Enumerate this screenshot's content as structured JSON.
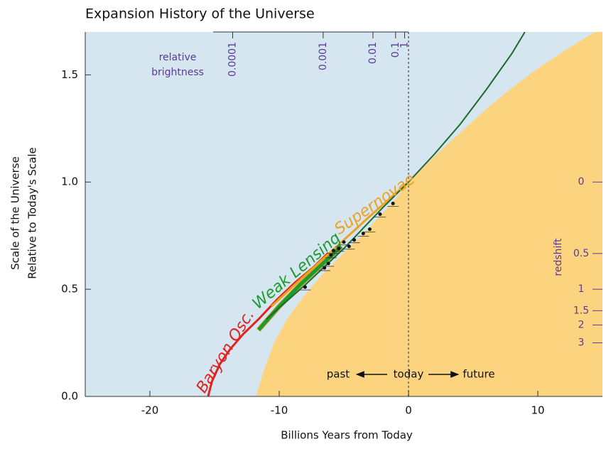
{
  "chart_data": {
    "type": "line",
    "title": "Expansion History of the Universe",
    "x_label": "Billions Years from Today",
    "y_label": [
      "Scale of the Universe",
      "Relative to Today's Scale"
    ],
    "xlim": [
      -25,
      15
    ],
    "ylim": [
      0,
      1.7
    ],
    "xticks": [
      -20,
      -10,
      0,
      10
    ],
    "yticks": [
      {
        "value": 0,
        "label": "0.0"
      },
      0.5,
      {
        "value": 1,
        "label": "1.0"
      },
      1.5
    ],
    "background_color": "#d6e6f0",
    "region": {
      "color": "#fcd47f",
      "x": [
        -11.8,
        -11.2,
        -10.4,
        -9.4,
        -8.2,
        -6.8,
        -5,
        -3,
        -1,
        0,
        2,
        4,
        6,
        8,
        10,
        12,
        14.4
      ],
      "values": [
        0,
        0.12,
        0.25,
        0.36,
        0.46,
        0.56,
        0.67,
        0.79,
        0.92,
        1.0,
        1.12,
        1.23,
        1.34,
        1.44,
        1.53,
        1.61,
        1.7
      ]
    },
    "series": [
      {
        "name": "Baryon Osc.",
        "color": "#e0231f",
        "x": [
          -15.5,
          -15.2,
          -14.6,
          -13.8,
          -12.8,
          -11.6,
          -10.2,
          -8.8,
          -7.4,
          -6.2
        ],
        "values": [
          0,
          0.07,
          0.15,
          0.22,
          0.29,
          0.36,
          0.45,
          0.53,
          0.6,
          0.67
        ]
      },
      {
        "name": "Weak Lensing",
        "color": "#1e9b2e",
        "x": [
          -11.6,
          -10,
          -8.4,
          -6.8,
          -5.2
        ],
        "values": [
          0.31,
          0.42,
          0.52,
          0.61,
          0.7
        ]
      },
      {
        "name": "Supernovae",
        "color": "#f0a020",
        "x": [
          -10.6,
          -9,
          -7,
          -5,
          -3,
          -1.5,
          0
        ],
        "values": [
          0.42,
          0.51,
          0.62,
          0.73,
          0.84,
          0.92,
          1.0
        ]
      },
      {
        "color": "#1b6b2a",
        "x": [
          -11,
          -8,
          -5,
          -2,
          0,
          2,
          4,
          6,
          8,
          9
        ],
        "values": [
          0.36,
          0.52,
          0.69,
          0.88,
          1.0,
          1.13,
          1.27,
          1.43,
          1.6,
          1.7
        ]
      }
    ],
    "points": {
      "color": "#111",
      "x": [
        -8,
        -6.5,
        -6.2,
        -6,
        -5.8,
        -5.4,
        -5,
        -4.6,
        -4.2,
        -3.5,
        -3,
        -2.2,
        -1.2
      ],
      "values": [
        0.51,
        0.6,
        0.62,
        0.66,
        0.68,
        0.69,
        0.72,
        0.7,
        0.73,
        0.76,
        0.78,
        0.85,
        0.9
      ]
    },
    "today_line": 0,
    "brightness_label": [
      "relative",
      "brightness"
    ],
    "brightness_ticks": [
      {
        "x": -13.6,
        "label": "0.0001"
      },
      {
        "x": -6.6,
        "label": "0.001"
      },
      {
        "x": -2.75,
        "label": "0.01"
      },
      {
        "x": -1.0,
        "label": "0.1"
      },
      {
        "x": -0.3,
        "label": "1"
      }
    ],
    "redshift_label": "redshift",
    "redshift_ticks": [
      0,
      0.5,
      1,
      1.5,
      2,
      3
    ],
    "time_labels": [
      "past",
      "today",
      "future"
    ]
  }
}
